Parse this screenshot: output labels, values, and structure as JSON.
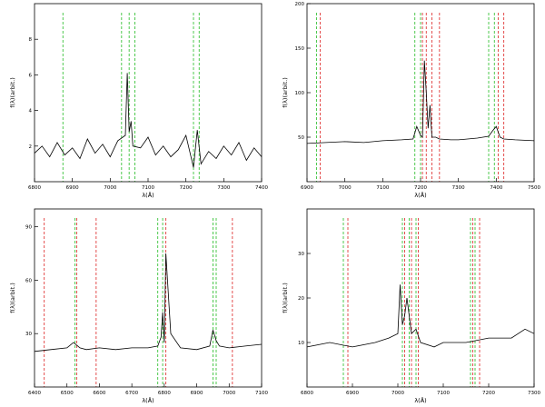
{
  "colors": {
    "axis": "#000000",
    "spectrum": "#000000",
    "sky_lines": "#22bb22",
    "object_lines": "#dd2222"
  },
  "chart_data": [
    {
      "type": "line",
      "title": "",
      "xlabel": "λ(Å)",
      "ylabel": "f(λ)(arbit.)",
      "xlim": [
        6800,
        7400
      ],
      "ylim": [
        0,
        10
      ],
      "x_ticks": [
        6800,
        6900,
        7000,
        7100,
        7200,
        7300,
        7400
      ],
      "y_ticks": [
        2,
        4,
        6,
        8
      ],
      "redshift_green": "",
      "redshift_red": "",
      "series": [
        {
          "x": [
            6800,
            6820,
            6840,
            6860,
            6880,
            6900,
            6920,
            6940,
            6960,
            6980,
            7000,
            7020,
            7040,
            7045,
            7050,
            7055,
            7060,
            7080,
            7100,
            7120,
            7140,
            7160,
            7180,
            7200,
            7220,
            7230,
            7240,
            7260,
            7280,
            7300,
            7320,
            7340,
            7360,
            7380,
            7400
          ],
          "y": [
            1.6,
            2.0,
            1.4,
            2.2,
            1.5,
            1.9,
            1.3,
            2.4,
            1.6,
            2.1,
            1.4,
            2.3,
            2.6,
            6.1,
            2.8,
            3.4,
            2.0,
            1.9,
            2.5,
            1.5,
            2.0,
            1.4,
            1.8,
            2.6,
            0.8,
            2.9,
            1.0,
            1.7,
            1.3,
            2.0,
            1.5,
            2.2,
            1.2,
            1.9,
            1.4
          ]
        }
      ],
      "sky_lines": [
        {
          "x": 6875,
          "label": ""
        },
        {
          "x": 7030,
          "label": ""
        },
        {
          "x": 7050,
          "label": ""
        },
        {
          "x": 7065,
          "label": ""
        },
        {
          "x": 7220,
          "label": ""
        },
        {
          "x": 7235,
          "label": ""
        }
      ],
      "object_lines": []
    },
    {
      "type": "line",
      "title": "",
      "xlabel": "λ(Å)",
      "ylabel": "f(λ)(arbit.)",
      "xlim": [
        6900,
        7500
      ],
      "ylim": [
        0,
        200
      ],
      "x_ticks": [
        6900,
        7000,
        7100,
        7200,
        7300,
        7400,
        7500
      ],
      "y_ticks": [
        50,
        100,
        150,
        200
      ],
      "redshift_green": "",
      "redshift_red": "",
      "series": [
        {
          "x": [
            6900,
            6950,
            7000,
            7050,
            7100,
            7150,
            7180,
            7190,
            7200,
            7205,
            7210,
            7215,
            7220,
            7225,
            7230,
            7240,
            7250,
            7280,
            7300,
            7350,
            7380,
            7390,
            7400,
            7410,
            7420,
            7450,
            7500
          ],
          "y": [
            43,
            44,
            45,
            44,
            46,
            47,
            48,
            62,
            52,
            50,
            136,
            100,
            60,
            86,
            50,
            50,
            48,
            47,
            47,
            49,
            51,
            57,
            62,
            50,
            48,
            47,
            46
          ]
        }
      ],
      "sky_lines": [
        {
          "x": 6925,
          "label": ""
        },
        {
          "x": 7185,
          "label": ""
        },
        {
          "x": 7200,
          "label": ""
        },
        {
          "x": 7380,
          "label": ""
        },
        {
          "x": 7395,
          "label": ""
        }
      ],
      "object_lines": [
        {
          "x": 6935,
          "label": ""
        },
        {
          "x": 7205,
          "label": ""
        },
        {
          "x": 7215,
          "label": ""
        },
        {
          "x": 7230,
          "label": ""
        },
        {
          "x": 7250,
          "label": ""
        },
        {
          "x": 7405,
          "label": ""
        },
        {
          "x": 7420,
          "label": ""
        }
      ]
    },
    {
      "type": "line",
      "title": "",
      "xlabel": "λ(Å)",
      "ylabel": "f(λ)(arbit.)",
      "xlim": [
        6400,
        7100
      ],
      "ylim": [
        0,
        100
      ],
      "x_ticks": [
        6400,
        6500,
        6600,
        6700,
        6800,
        6900,
        7000,
        7100
      ],
      "y_ticks": [
        30,
        60,
        90
      ],
      "redshift_green": "",
      "redshift_red": "",
      "series": [
        {
          "x": [
            6400,
            6450,
            6500,
            6520,
            6540,
            6560,
            6600,
            6650,
            6700,
            6750,
            6780,
            6790,
            6795,
            6800,
            6805,
            6820,
            6850,
            6900,
            6940,
            6950,
            6960,
            6970,
            7000,
            7050,
            7100
          ],
          "y": [
            20,
            21,
            22,
            25,
            22,
            21,
            22,
            21,
            22,
            22,
            23,
            28,
            42,
            25,
            75,
            30,
            22,
            21,
            23,
            32,
            26,
            23,
            22,
            23,
            24
          ]
        }
      ],
      "sky_lines": [
        {
          "x": 6525,
          "label": ""
        },
        {
          "x": 6780,
          "label": ""
        },
        {
          "x": 6795,
          "label": ""
        },
        {
          "x": 6950,
          "label": ""
        },
        {
          "x": 6960,
          "label": ""
        }
      ],
      "object_lines": [
        {
          "x": 6430,
          "label": ""
        },
        {
          "x": 6530,
          "label": ""
        },
        {
          "x": 6590,
          "label": ""
        },
        {
          "x": 6805,
          "label": ""
        },
        {
          "x": 7010,
          "label": ""
        }
      ]
    },
    {
      "type": "line",
      "title": "",
      "xlabel": "λ(Å)",
      "ylabel": "f(λ)(arbit.)",
      "xlim": [
        6800,
        7300
      ],
      "ylim": [
        0,
        40
      ],
      "x_ticks": [
        6800,
        6900,
        7000,
        7100,
        7200,
        7300
      ],
      "y_ticks": [
        10,
        20,
        30
      ],
      "redshift_green": "",
      "redshift_red": "",
      "series": [
        {
          "x": [
            6800,
            6850,
            6900,
            6950,
            6980,
            7000,
            7005,
            7010,
            7015,
            7020,
            7030,
            7040,
            7050,
            7080,
            7100,
            7150,
            7200,
            7250,
            7280,
            7300
          ],
          "y": [
            9,
            10,
            9,
            10,
            11,
            12,
            23,
            14,
            16,
            20,
            12,
            13,
            10,
            9,
            10,
            10,
            11,
            11,
            13,
            12
          ]
        }
      ],
      "sky_lines": [
        {
          "x": 6880,
          "label": ""
        },
        {
          "x": 7010,
          "label": ""
        },
        {
          "x": 7025,
          "label": ""
        },
        {
          "x": 7040,
          "label": ""
        },
        {
          "x": 7160,
          "label": ""
        },
        {
          "x": 7170,
          "label": ""
        }
      ],
      "object_lines": [
        {
          "x": 6890,
          "label": ""
        },
        {
          "x": 7015,
          "label": ""
        },
        {
          "x": 7030,
          "label": ""
        },
        {
          "x": 7045,
          "label": ""
        },
        {
          "x": 7165,
          "label": ""
        },
        {
          "x": 7180,
          "label": ""
        }
      ]
    }
  ]
}
